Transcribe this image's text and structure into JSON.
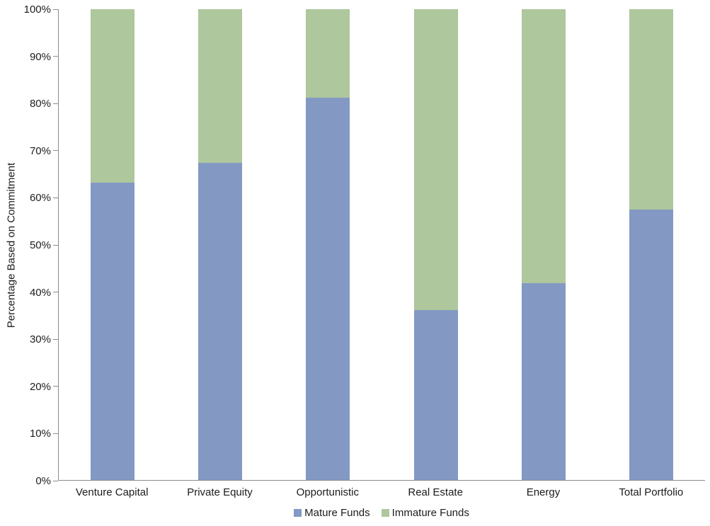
{
  "chart_data": {
    "type": "bar",
    "stacked": true,
    "title": "",
    "xlabel": "",
    "ylabel": "Percentage Based on Commitment",
    "ylim": [
      0,
      100
    ],
    "y_tick_step": 10,
    "y_tick_labels": [
      "0%",
      "10%",
      "20%",
      "30%",
      "40%",
      "50%",
      "60%",
      "70%",
      "80%",
      "90%",
      "100%"
    ],
    "grid": false,
    "legend_position": "bottom",
    "categories": [
      "Venture Capital",
      "Private Equity",
      "Opportunistic",
      "Real Estate",
      "Energy",
      "Total Portfolio"
    ],
    "series": [
      {
        "name": "Mature Funds",
        "color": "#8399C4",
        "values": [
          63.1,
          67.3,
          81.2,
          36.1,
          41.8,
          57.5
        ]
      },
      {
        "name": "Immature Funds",
        "color": "#AEC79D",
        "values": [
          36.9,
          32.7,
          18.8,
          63.9,
          58.2,
          42.5
        ]
      }
    ],
    "axis_color": "#8c8c8c",
    "text_color": "#1c1c1c"
  }
}
